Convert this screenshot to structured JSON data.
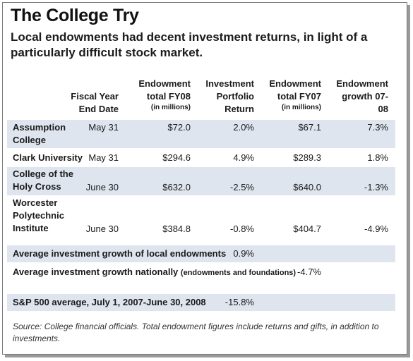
{
  "title": "The College Try",
  "subtitle": "Local endowments had decent investment returns, in light of a particularly difficult stock market.",
  "columns": {
    "fiscal_year": "Fiscal Year End Date",
    "fy08": "Endowment total FY08",
    "fy08_unit": "(in millions)",
    "return": "Investment Portfolio Return",
    "fy07": "Endowment total FY07",
    "fy07_unit": "(in millions)",
    "growth": "Endowment growth 07-08"
  },
  "rows": [
    {
      "name": "Assumption College",
      "date": "May 31",
      "fy08": "$72.0",
      "return": "2.0%",
      "fy07": "$67.1",
      "growth": "7.3%"
    },
    {
      "name": "Clark University",
      "date": "May 31",
      "fy08": "$294.6",
      "return": "4.9%",
      "fy07": "$289.3",
      "growth": "1.8%"
    },
    {
      "name": "College of the Holy Cross",
      "date": "June 30",
      "fy08": "$632.0",
      "return": "-2.5%",
      "fy07": "$640.0",
      "growth": "-1.3%"
    },
    {
      "name": "Worcester Polytechnic Institute",
      "date": "June 30",
      "fy08": "$384.8",
      "return": "-0.8%",
      "fy07": "$404.7",
      "growth": "-4.9%"
    }
  ],
  "summary": {
    "local_label": "Average investment growth of local endowments",
    "local_value": "0.9%",
    "national_label": "Average investment growth nationally",
    "national_note": "(endowments and foundations)",
    "national_value": "-4.7%",
    "sp_label": "S&P 500 average, July 1, 2007-June 30, 2008",
    "sp_value": "-15.8%"
  },
  "source": "Source: College financial officials. Total endowment figures include returns and gifts, in addition to investments."
}
